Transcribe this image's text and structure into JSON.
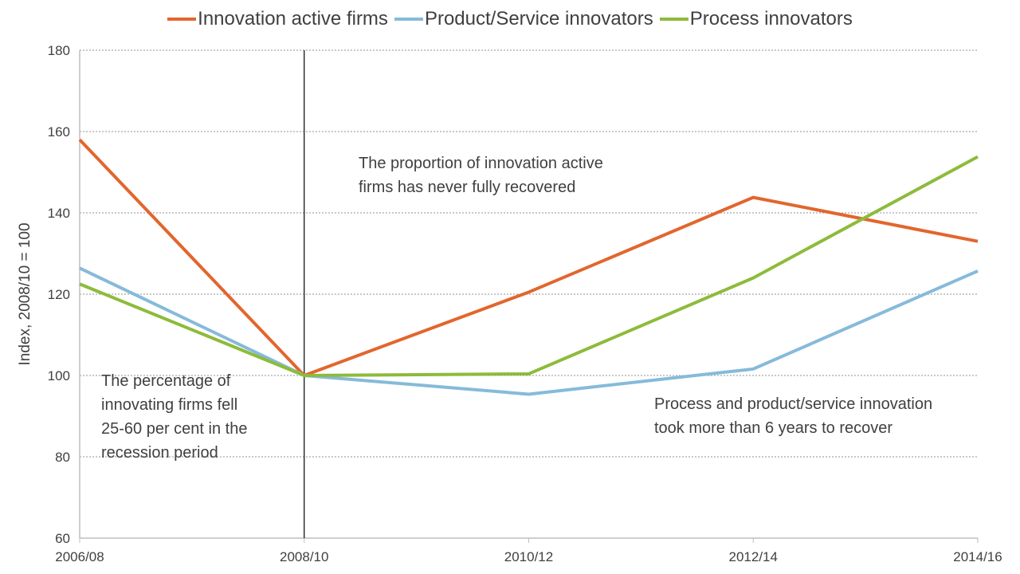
{
  "chart_data": {
    "type": "line",
    "title": "",
    "xlabel": "",
    "ylabel": "Index, 2008/10 = 100",
    "categories": [
      "2006/08",
      "2008/10",
      "2010/12",
      "2012/14",
      "2014/16"
    ],
    "ylim": [
      60,
      180
    ],
    "yticks": [
      60,
      80,
      100,
      120,
      140,
      160,
      180
    ],
    "grid": "horizontal dotted",
    "legend": "top",
    "reference_line": "2008/10",
    "series": [
      {
        "name": "Innovation active firms",
        "color": "#E2662D",
        "values": [
          158,
          100,
          120.5,
          143.8,
          133
        ]
      },
      {
        "name": "Product/Service innovators",
        "color": "#86BADA",
        "values": [
          126.4,
          100,
          95.4,
          101.6,
          125.7
        ]
      },
      {
        "name": "Process innovators",
        "color": "#8DBB3B",
        "values": [
          122.5,
          100,
          100.4,
          124,
          153.8
        ]
      }
    ],
    "annotations": [
      {
        "lines": [
          "The proportion of innovation active",
          "firms has never fully recovered"
        ]
      },
      {
        "lines": [
          "The percentage of",
          "innovating firms fell",
          "25-60 per cent in the",
          "recession period"
        ]
      },
      {
        "lines": [
          "Process and product/service innovation",
          "took more than 6 years to recover"
        ]
      }
    ]
  }
}
